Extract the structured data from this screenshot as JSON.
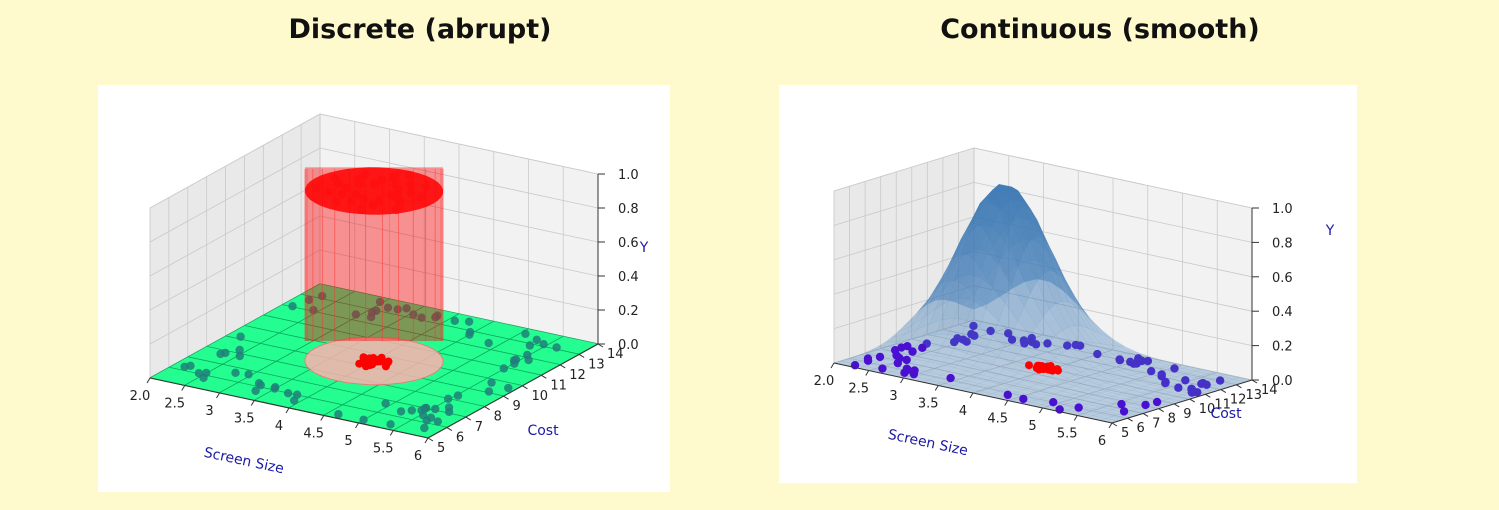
{
  "chart_data": [
    {
      "type": "scatter",
      "title": "Discrete (abrupt)",
      "surface": "step",
      "xlabel": "Screen Size",
      "ylabel": "Cost",
      "zlabel": "Y",
      "x_ticks": [
        "2.0",
        "2.5",
        "3",
        "3.5",
        "4",
        "4.5",
        "5",
        "5.5",
        "6"
      ],
      "y_ticks": [
        "5",
        "6",
        "7",
        "8",
        "9",
        "10",
        "11",
        "12",
        "13",
        "14"
      ],
      "z_ticks": [
        "0.0",
        "0.2",
        "0.4",
        "0.6",
        "0.8",
        "1.0"
      ],
      "xlim": [
        2,
        6
      ],
      "ylim": [
        5,
        14
      ],
      "zlim": [
        0,
        1
      ],
      "floor_color": "#00ff7f",
      "peak_color": "#ff0000",
      "point_color_outside": "#20807a",
      "point_color_inside": "#ff0000"
    },
    {
      "type": "scatter",
      "title": "Continuous (smooth)",
      "surface": "smooth",
      "xlabel": "Screen Size",
      "ylabel": "Cost",
      "zlabel": "Y",
      "x_ticks": [
        "2.0",
        "2.5",
        "3",
        "3.5",
        "4",
        "4.5",
        "5",
        "5.5",
        "6"
      ],
      "y_ticks": [
        "5",
        "6",
        "7",
        "8",
        "9",
        "10",
        "11",
        "12",
        "13",
        "14"
      ],
      "z_ticks": [
        "0.0",
        "0.2",
        "0.4",
        "0.6",
        "0.8",
        "1.0"
      ],
      "xlim": [
        2,
        6
      ],
      "ylim": [
        5,
        14
      ],
      "zlim": [
        0,
        1
      ],
      "surface_color": "#3b78b4",
      "point_color_outside": "#4b0fd1",
      "point_color_inside": "#ff0000"
    }
  ]
}
